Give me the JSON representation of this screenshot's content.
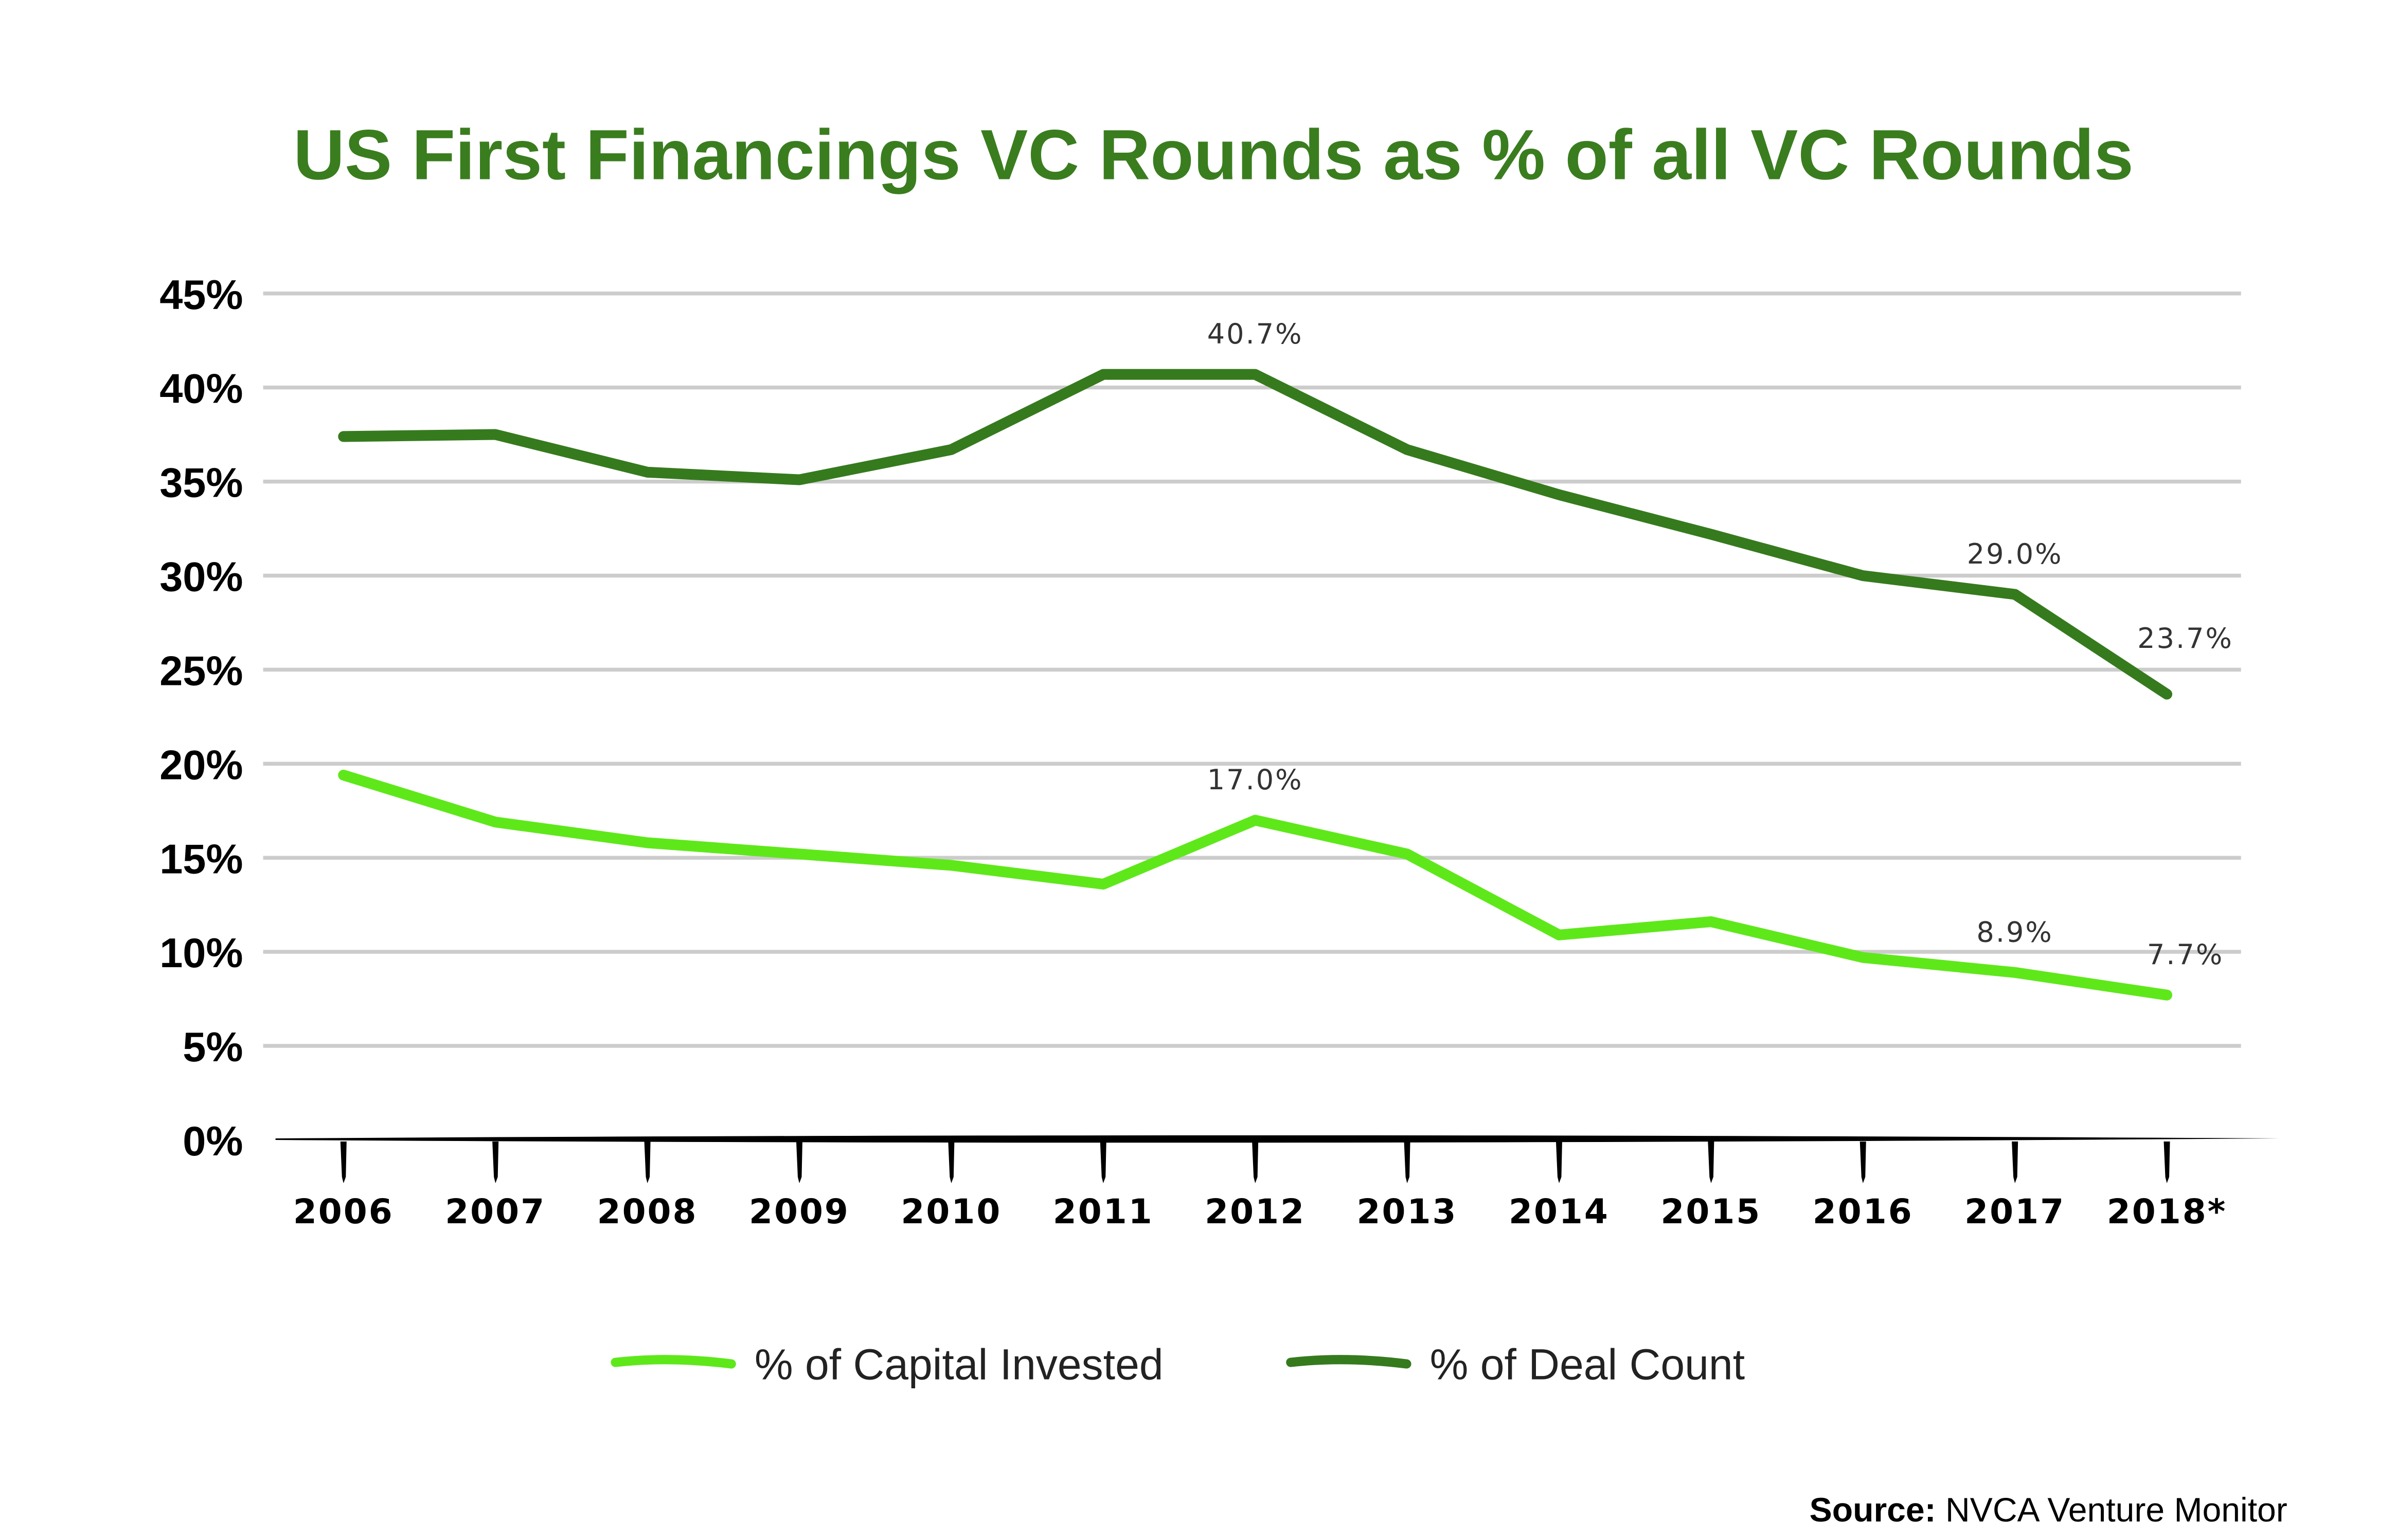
{
  "chart_data": {
    "type": "line",
    "title": "US First Financings VC Rounds as % of all VC Rounds",
    "xlabel": "",
    "ylabel": "",
    "ylim": [
      0,
      45
    ],
    "yticks": [
      "0%",
      "5%",
      "10%",
      "15%",
      "20%",
      "25%",
      "30%",
      "35%",
      "40%",
      "45%"
    ],
    "ytick_values": [
      0,
      5,
      10,
      15,
      20,
      25,
      30,
      35,
      40,
      45
    ],
    "categories": [
      "2006",
      "2007",
      "2008",
      "2009",
      "2010",
      "2011",
      "2012",
      "2013",
      "2014",
      "2015",
      "2016",
      "2017",
      "2018*"
    ],
    "grid": true,
    "legend_position": "bottom-center",
    "series": [
      {
        "name": "% of Capital Invested",
        "color": "#5ee81a",
        "values": [
          19.4,
          16.9,
          15.8,
          15.2,
          14.6,
          13.6,
          17.0,
          15.2,
          10.9,
          11.6,
          9.7,
          8.9,
          7.7
        ],
        "labels": {
          "6": "17.0%",
          "11": "8.9%",
          "12": "7.7%"
        }
      },
      {
        "name": "% of Deal Count",
        "color": "#367a1e",
        "values": [
          37.4,
          37.5,
          35.5,
          35.1,
          36.7,
          40.7,
          40.7,
          36.7,
          34.3,
          32.2,
          30.0,
          29.0,
          23.7
        ],
        "labels": {
          "6": "40.7%",
          "11": "29.0%",
          "12": "23.7%"
        }
      }
    ],
    "source_label": "Source:",
    "source_text": "NVCA Venture Monitor"
  },
  "colors": {
    "title": "#3a7d1f",
    "grid": "#cccccc"
  }
}
